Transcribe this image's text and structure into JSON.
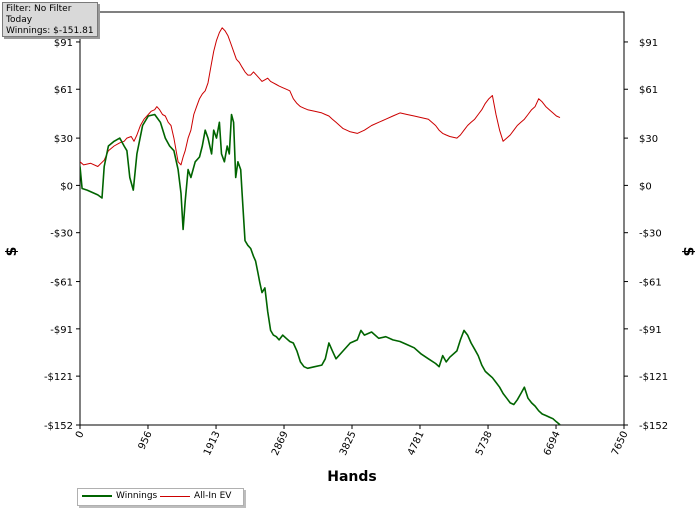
{
  "filter": {
    "line1": "Filter: No Filter",
    "line2": "Today",
    "line3": "Winnings: $-151.81"
  },
  "chart_data": {
    "type": "line",
    "title": "",
    "xlabel": "Hands",
    "ylabel": "$",
    "ylabel_right": "$",
    "xlim": [
      0,
      7650
    ],
    "ylim": [
      -152,
      110
    ],
    "x_tick_labels": [
      "0",
      "956",
      "1913",
      "2869",
      "3825",
      "4781",
      "5738",
      "6694",
      "7650"
    ],
    "x_tick_values": [
      0,
      956,
      1913,
      2869,
      3825,
      4781,
      5738,
      6694,
      7650
    ],
    "y_tick_labels": [
      "$91",
      "$61",
      "$30",
      "$0",
      "-$30",
      "-$61",
      "-$91",
      "-$121",
      "-$152"
    ],
    "y_tick_values": [
      91,
      61,
      30,
      0,
      -30,
      -61,
      -91,
      -121,
      -152
    ],
    "grid": true,
    "legend_position": "bottom-left",
    "series": [
      {
        "name": "Winnings",
        "color": "#006400",
        "points": [
          [
            0,
            12
          ],
          [
            30,
            -2
          ],
          [
            100,
            -3
          ],
          [
            250,
            -6
          ],
          [
            310,
            -8
          ],
          [
            340,
            12
          ],
          [
            400,
            25
          ],
          [
            480,
            28
          ],
          [
            560,
            30
          ],
          [
            620,
            25
          ],
          [
            660,
            22
          ],
          [
            700,
            5
          ],
          [
            750,
            -3
          ],
          [
            800,
            20
          ],
          [
            880,
            38
          ],
          [
            960,
            44
          ],
          [
            1050,
            45
          ],
          [
            1130,
            40
          ],
          [
            1200,
            30
          ],
          [
            1260,
            25
          ],
          [
            1320,
            22
          ],
          [
            1380,
            10
          ],
          [
            1420,
            -5
          ],
          [
            1450,
            -28
          ],
          [
            1480,
            -10
          ],
          [
            1520,
            10
          ],
          [
            1560,
            5
          ],
          [
            1620,
            15
          ],
          [
            1680,
            18
          ],
          [
            1720,
            25
          ],
          [
            1760,
            35
          ],
          [
            1800,
            30
          ],
          [
            1850,
            20
          ],
          [
            1880,
            35
          ],
          [
            1920,
            30
          ],
          [
            1960,
            40
          ],
          [
            1990,
            20
          ],
          [
            2030,
            15
          ],
          [
            2070,
            25
          ],
          [
            2100,
            20
          ],
          [
            2130,
            45
          ],
          [
            2160,
            40
          ],
          [
            2190,
            5
          ],
          [
            2220,
            15
          ],
          [
            2260,
            10
          ],
          [
            2280,
            -5
          ],
          [
            2320,
            -35
          ],
          [
            2360,
            -38
          ],
          [
            2400,
            -40
          ],
          [
            2440,
            -45
          ],
          [
            2470,
            -48
          ],
          [
            2500,
            -55
          ],
          [
            2530,
            -62
          ],
          [
            2560,
            -68
          ],
          [
            2600,
            -65
          ],
          [
            2640,
            -80
          ],
          [
            2680,
            -92
          ],
          [
            2720,
            -95
          ],
          [
            2760,
            -96
          ],
          [
            2800,
            -98
          ],
          [
            2850,
            -95
          ],
          [
            2900,
            -97
          ],
          [
            2950,
            -99
          ],
          [
            3000,
            -100
          ],
          [
            3050,
            -105
          ],
          [
            3100,
            -112
          ],
          [
            3150,
            -115
          ],
          [
            3200,
            -116
          ],
          [
            3300,
            -115
          ],
          [
            3400,
            -114
          ],
          [
            3450,
            -110
          ],
          [
            3500,
            -100
          ],
          [
            3550,
            -105
          ],
          [
            3600,
            -110
          ],
          [
            3700,
            -105
          ],
          [
            3800,
            -100
          ],
          [
            3900,
            -98
          ],
          [
            3950,
            -92
          ],
          [
            4000,
            -95
          ],
          [
            4100,
            -93
          ],
          [
            4200,
            -97
          ],
          [
            4300,
            -96
          ],
          [
            4400,
            -98
          ],
          [
            4500,
            -99
          ],
          [
            4600,
            -101
          ],
          [
            4700,
            -103
          ],
          [
            4800,
            -107
          ],
          [
            4900,
            -110
          ],
          [
            5000,
            -113
          ],
          [
            5050,
            -115
          ],
          [
            5100,
            -108
          ],
          [
            5150,
            -112
          ],
          [
            5200,
            -109
          ],
          [
            5300,
            -105
          ],
          [
            5350,
            -98
          ],
          [
            5400,
            -92
          ],
          [
            5450,
            -95
          ],
          [
            5500,
            -100
          ],
          [
            5550,
            -104
          ],
          [
            5600,
            -108
          ],
          [
            5650,
            -114
          ],
          [
            5700,
            -118
          ],
          [
            5750,
            -120
          ],
          [
            5800,
            -122
          ],
          [
            5850,
            -125
          ],
          [
            5900,
            -128
          ],
          [
            5950,
            -132
          ],
          [
            6000,
            -135
          ],
          [
            6050,
            -138
          ],
          [
            6100,
            -139
          ],
          [
            6150,
            -136
          ],
          [
            6200,
            -132
          ],
          [
            6250,
            -128
          ],
          [
            6300,
            -135
          ],
          [
            6350,
            -138
          ],
          [
            6400,
            -140
          ],
          [
            6450,
            -143
          ],
          [
            6500,
            -145
          ],
          [
            6550,
            -146
          ],
          [
            6600,
            -147
          ],
          [
            6650,
            -148
          ],
          [
            6700,
            -150
          ],
          [
            6750,
            -151.81
          ]
        ]
      },
      {
        "name": "All-In EV",
        "color": "#cc0000",
        "points": [
          [
            0,
            15
          ],
          [
            50,
            13
          ],
          [
            150,
            14
          ],
          [
            250,
            12
          ],
          [
            340,
            16
          ],
          [
            400,
            22
          ],
          [
            480,
            25
          ],
          [
            560,
            27
          ],
          [
            620,
            28
          ],
          [
            660,
            30
          ],
          [
            720,
            31
          ],
          [
            760,
            28
          ],
          [
            800,
            32
          ],
          [
            850,
            38
          ],
          [
            900,
            42
          ],
          [
            960,
            45
          ],
          [
            1000,
            47
          ],
          [
            1050,
            48
          ],
          [
            1080,
            50
          ],
          [
            1120,
            48
          ],
          [
            1160,
            45
          ],
          [
            1200,
            44
          ],
          [
            1240,
            40
          ],
          [
            1280,
            38
          ],
          [
            1320,
            30
          ],
          [
            1360,
            20
          ],
          [
            1380,
            15
          ],
          [
            1420,
            13
          ],
          [
            1450,
            18
          ],
          [
            1480,
            22
          ],
          [
            1520,
            30
          ],
          [
            1560,
            35
          ],
          [
            1600,
            45
          ],
          [
            1640,
            50
          ],
          [
            1680,
            55
          ],
          [
            1720,
            58
          ],
          [
            1760,
            60
          ],
          [
            1800,
            65
          ],
          [
            1840,
            75
          ],
          [
            1880,
            85
          ],
          [
            1920,
            92
          ],
          [
            1960,
            97
          ],
          [
            2000,
            100
          ],
          [
            2040,
            98
          ],
          [
            2080,
            95
          ],
          [
            2120,
            90
          ],
          [
            2160,
            85
          ],
          [
            2200,
            80
          ],
          [
            2240,
            78
          ],
          [
            2280,
            75
          ],
          [
            2320,
            72
          ],
          [
            2360,
            70
          ],
          [
            2400,
            70
          ],
          [
            2440,
            72
          ],
          [
            2480,
            70
          ],
          [
            2520,
            68
          ],
          [
            2560,
            66
          ],
          [
            2600,
            67
          ],
          [
            2640,
            68
          ],
          [
            2680,
            66
          ],
          [
            2720,
            65
          ],
          [
            2760,
            64
          ],
          [
            2800,
            63
          ],
          [
            2850,
            62
          ],
          [
            2900,
            61
          ],
          [
            2950,
            60
          ],
          [
            3000,
            55
          ],
          [
            3050,
            52
          ],
          [
            3100,
            50
          ],
          [
            3150,
            49
          ],
          [
            3200,
            48
          ],
          [
            3300,
            47
          ],
          [
            3400,
            46
          ],
          [
            3450,
            45
          ],
          [
            3500,
            44
          ],
          [
            3550,
            42
          ],
          [
            3600,
            40
          ],
          [
            3650,
            38
          ],
          [
            3700,
            36
          ],
          [
            3750,
            35
          ],
          [
            3800,
            34
          ],
          [
            3900,
            33
          ],
          [
            4000,
            35
          ],
          [
            4100,
            38
          ],
          [
            4200,
            40
          ],
          [
            4300,
            42
          ],
          [
            4400,
            44
          ],
          [
            4500,
            46
          ],
          [
            4600,
            45
          ],
          [
            4700,
            44
          ],
          [
            4800,
            43
          ],
          [
            4900,
            42
          ],
          [
            5000,
            38
          ],
          [
            5050,
            35
          ],
          [
            5100,
            33
          ],
          [
            5150,
            32
          ],
          [
            5200,
            31
          ],
          [
            5300,
            30
          ],
          [
            5350,
            32
          ],
          [
            5400,
            35
          ],
          [
            5450,
            38
          ],
          [
            5500,
            40
          ],
          [
            5550,
            42
          ],
          [
            5600,
            45
          ],
          [
            5650,
            48
          ],
          [
            5700,
            52
          ],
          [
            5750,
            55
          ],
          [
            5800,
            57
          ],
          [
            5850,
            45
          ],
          [
            5900,
            35
          ],
          [
            5950,
            28
          ],
          [
            6000,
            30
          ],
          [
            6050,
            32
          ],
          [
            6100,
            35
          ],
          [
            6150,
            38
          ],
          [
            6200,
            40
          ],
          [
            6250,
            42
          ],
          [
            6300,
            45
          ],
          [
            6350,
            48
          ],
          [
            6400,
            50
          ],
          [
            6450,
            55
          ],
          [
            6500,
            53
          ],
          [
            6550,
            50
          ],
          [
            6600,
            48
          ],
          [
            6650,
            46
          ],
          [
            6700,
            44
          ],
          [
            6750,
            43
          ]
        ]
      }
    ]
  }
}
